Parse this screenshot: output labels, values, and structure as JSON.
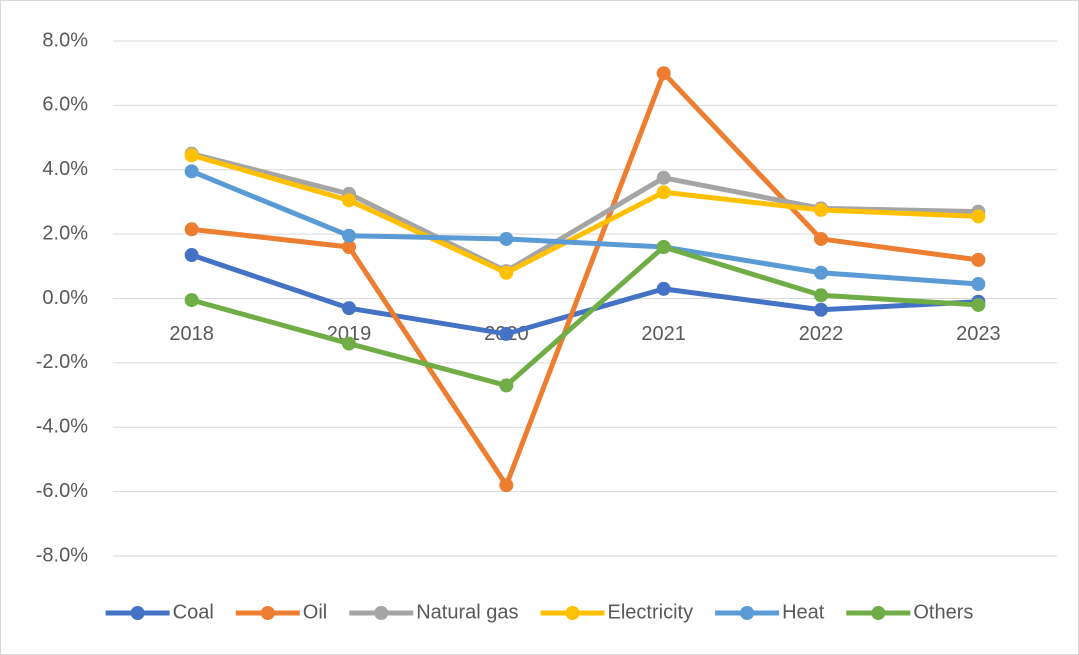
{
  "chart_data": {
    "type": "line",
    "categories": [
      "2018",
      "2019",
      "2020",
      "2021",
      "2022",
      "2023"
    ],
    "series": [
      {
        "name": "Coal",
        "color": "#4472c4",
        "values": [
          1.35,
          -0.3,
          -1.1,
          0.3,
          -0.35,
          -0.1
        ]
      },
      {
        "name": "Oil",
        "color": "#ed7d31",
        "values": [
          2.15,
          1.6,
          -5.8,
          7.0,
          1.85,
          1.2
        ]
      },
      {
        "name": "Natural gas",
        "color": "#a5a5a5",
        "values": [
          4.5,
          3.25,
          0.85,
          3.75,
          2.8,
          2.7
        ]
      },
      {
        "name": "Electricity",
        "color": "#ffc000",
        "values": [
          4.45,
          3.05,
          0.8,
          3.3,
          2.75,
          2.55
        ]
      },
      {
        "name": "Heat",
        "color": "#5b9bd5",
        "values": [
          3.95,
          1.95,
          1.85,
          1.6,
          0.8,
          0.45
        ]
      },
      {
        "name": "Others",
        "color": "#70ad47",
        "values": [
          -0.05,
          -1.4,
          -2.7,
          1.6,
          0.1,
          -0.2
        ]
      }
    ],
    "ylim": [
      -8,
      8
    ],
    "yticks": [
      {
        "value": -8,
        "label": "-8.0%"
      },
      {
        "value": -6,
        "label": "-6.0%"
      },
      {
        "value": -4,
        "label": "-4.0%"
      },
      {
        "value": -2,
        "label": "-2.0%"
      },
      {
        "value": 0,
        "label": "0.0%"
      },
      {
        "value": 2,
        "label": "2.0%"
      },
      {
        "value": 4,
        "label": "4.0%"
      },
      {
        "value": 6,
        "label": "6.0%"
      },
      {
        "value": 8,
        "label": "8.0%"
      }
    ],
    "grid": true,
    "legend": "bottom"
  }
}
